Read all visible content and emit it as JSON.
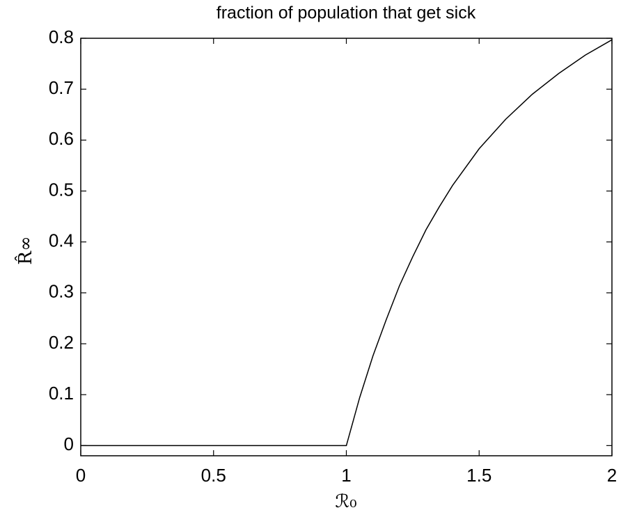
{
  "chart_data": {
    "type": "line",
    "title": "fraction of population that get sick",
    "x_label": "ℛ₀",
    "y_label": "R̂∞",
    "x": [
      0,
      1,
      1.05,
      1.1,
      1.15,
      1.2,
      1.25,
      1.3,
      1.35,
      1.4,
      1.5,
      1.6,
      1.7,
      1.8,
      1.9,
      2
    ],
    "series": [
      {
        "color": "#000000",
        "values": [
          0,
          0,
          0.094,
          0.176,
          0.247,
          0.314,
          0.371,
          0.424,
          0.469,
          0.511,
          0.583,
          0.641,
          0.69,
          0.731,
          0.767,
          0.797
        ]
      }
    ],
    "xlim": [
      0,
      2
    ],
    "xticks": [
      0,
      0.5,
      1,
      1.5,
      2
    ],
    "ylim": [
      -0.02,
      0.8
    ],
    "yticks": [
      0,
      0.1,
      0.2,
      0.3,
      0.4,
      0.5,
      0.6,
      0.7,
      0.8
    ],
    "grid": false
  }
}
